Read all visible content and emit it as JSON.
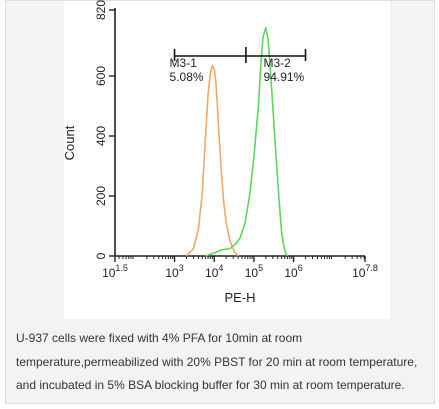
{
  "chart_data": {
    "type": "line",
    "xlabel": "PE-H",
    "ylabel": "Count",
    "xscale": "log",
    "xlim": [
      31.6,
      63096000
    ],
    "ylim": [
      0,
      820
    ],
    "x_ticks": [
      {
        "value": 31.6,
        "base": "10",
        "exp": "1.5"
      },
      {
        "value": 1000,
        "base": "10",
        "exp": "3"
      },
      {
        "value": 10000,
        "base": "10",
        "exp": "4"
      },
      {
        "value": 100000,
        "base": "10",
        "exp": "5"
      },
      {
        "value": 1000000,
        "base": "10",
        "exp": "6"
      },
      {
        "value": 63096000,
        "base": "10",
        "exp": "7.8"
      }
    ],
    "y_ticks": [
      "0",
      "200",
      "400",
      "600",
      "820"
    ],
    "y_tick_values": [
      0,
      200,
      400,
      600,
      820
    ],
    "gates": [
      {
        "name": "M3-1",
        "percent": "5.08%"
      },
      {
        "name": "M3-2",
        "percent": "94.91%"
      }
    ],
    "gate_range": {
      "left": 1000,
      "divider": 63000,
      "right": 2000000
    },
    "series": [
      {
        "color": "#f0a868",
        "x": [
          2000,
          3000,
          4000,
          5000,
          6000,
          7000,
          8000,
          9000,
          10000,
          11000,
          12000,
          13000,
          15000,
          17000,
          20000,
          25000,
          32000,
          40000
        ],
        "y": [
          0,
          25,
          90,
          210,
          390,
          540,
          610,
          635,
          625,
          580,
          500,
          420,
          290,
          190,
          110,
          50,
          15,
          0
        ]
      },
      {
        "color": "#5fd35f",
        "x": [
          6000,
          10000,
          15000,
          25000,
          35000,
          45000,
          60000,
          80000,
          100000,
          130000,
          150000,
          170000,
          200000,
          230000,
          280000,
          350000,
          430000,
          500000,
          580000,
          650000,
          700000
        ],
        "y": [
          0,
          10,
          20,
          25,
          40,
          60,
          110,
          210,
          330,
          500,
          640,
          730,
          760,
          720,
          560,
          360,
          190,
          80,
          25,
          5,
          0
        ]
      }
    ]
  },
  "caption": {
    "line1": "U-937 cells were fixed with 4% PFA for 10min at room",
    "line2": "temperature,permeabilized with 20% PBST for 20 min at room temperature,",
    "line3": "and incubated in 5% BSA blocking buffer for 30 min at room temperature."
  }
}
